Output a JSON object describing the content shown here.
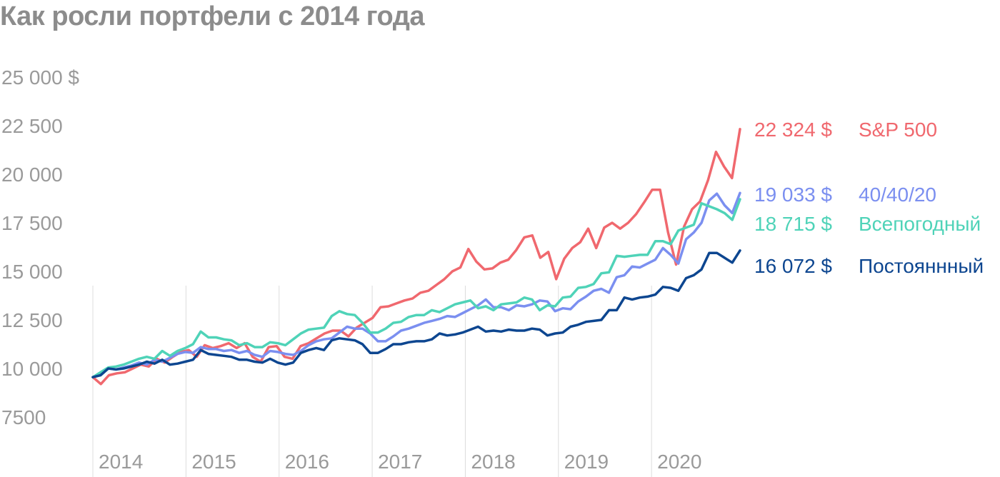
{
  "chart_data": {
    "type": "line",
    "title": "Как росли портфели с 2014 года",
    "xlabel": "",
    "ylabel": "",
    "ylim": [
      7500,
      25000
    ],
    "y_ticks": [
      {
        "value": 7500,
        "label": "7500"
      },
      {
        "value": 10000,
        "label": "10 000"
      },
      {
        "value": 12500,
        "label": "12 500"
      },
      {
        "value": 15000,
        "label": "15 000"
      },
      {
        "value": 17500,
        "label": "17 500"
      },
      {
        "value": 20000,
        "label": "20 000"
      },
      {
        "value": 22500,
        "label": "22 500"
      },
      {
        "value": 25000,
        "label": "25 000 $"
      }
    ],
    "x_ticks": [
      "2014",
      "2015",
      "2016",
      "2017",
      "2018",
      "2019",
      "2020"
    ],
    "x_start": 2014.0,
    "x_end": 2020.95,
    "grid": "vertical year lines",
    "legend": "end-of-line labels",
    "series": [
      {
        "name": "S&P 500",
        "color": "#f0686e",
        "end_label": "22 324 $",
        "values": [
          9550,
          9200,
          9650,
          9750,
          9800,
          10000,
          10200,
          10100,
          10500,
          10300,
          10600,
          10850,
          10950,
          10600,
          11200,
          11050,
          11150,
          11300,
          11050,
          11300,
          10600,
          10350,
          11100,
          11150,
          10600,
          10500,
          11150,
          11300,
          11550,
          11800,
          11950,
          11950,
          11650,
          12100,
          12350,
          12600,
          13150,
          13200,
          13350,
          13500,
          13600,
          13900,
          14000,
          14300,
          14600,
          15000,
          15200,
          16150,
          15500,
          15100,
          15150,
          15450,
          15600,
          16100,
          16750,
          16850,
          15700,
          16000,
          14600,
          15650,
          16200,
          16500,
          17200,
          16200,
          17250,
          17500,
          17200,
          17500,
          17950,
          18550,
          19200,
          19200,
          17000,
          15350,
          17300,
          18200,
          18600,
          19700,
          21150,
          20400,
          19800,
          22324
        ]
      },
      {
        "name": "40/40/20",
        "color": "#7b8ff0",
        "end_label": "19 033 $",
        "values": [
          9550,
          9700,
          10000,
          9950,
          10050,
          10150,
          10300,
          10200,
          10450,
          10350,
          10550,
          10750,
          10850,
          10800,
          11100,
          11000,
          11000,
          10900,
          10950,
          10800,
          10900,
          10700,
          10600,
          10900,
          10850,
          10750,
          10700,
          10900,
          11200,
          11400,
          11500,
          11550,
          11850,
          12150,
          12050,
          12050,
          11800,
          11400,
          11400,
          11650,
          11950,
          12050,
          12200,
          12350,
          12450,
          12550,
          12700,
          12650,
          12850,
          13050,
          13250,
          13550,
          13150,
          13150,
          13000,
          13250,
          13200,
          13300,
          13500,
          13450,
          12950,
          13100,
          13050,
          13450,
          13700,
          14000,
          14100,
          13900,
          14700,
          14800,
          15250,
          15200,
          15400,
          15600,
          16200,
          15850,
          15400,
          16650,
          17000,
          17500,
          18650,
          19000,
          18400,
          18000,
          19033
        ]
      },
      {
        "name": "Всепогодный",
        "color": "#4fd3b8",
        "end_label": "18 715 $",
        "values": [
          9550,
          9800,
          10050,
          10100,
          10200,
          10350,
          10500,
          10600,
          10500,
          10900,
          10650,
          10900,
          11050,
          11250,
          11900,
          11600,
          11600,
          11500,
          11450,
          11200,
          11300,
          11100,
          11100,
          11350,
          11300,
          11200,
          11500,
          11800,
          12000,
          12050,
          12100,
          12700,
          12950,
          12800,
          12750,
          12350,
          11850,
          11850,
          12050,
          12350,
          12400,
          12650,
          12750,
          12750,
          13000,
          12900,
          13100,
          13300,
          13400,
          13500,
          13100,
          13200,
          13000,
          13300,
          13350,
          13400,
          13650,
          13550,
          13000,
          13250,
          13200,
          13650,
          13700,
          14150,
          14200,
          14350,
          14900,
          14950,
          15800,
          15750,
          15800,
          15850,
          15850,
          16550,
          16550,
          16400,
          17100,
          17250,
          17400,
          18500,
          18350,
          18200,
          18000,
          17650,
          18715
        ]
      },
      {
        "name": "Постояннный",
        "color": "#0d4690",
        "end_label": "16 072 $",
        "values": [
          9550,
          9650,
          10000,
          9950,
          10000,
          10100,
          10200,
          10350,
          10250,
          10450,
          10200,
          10250,
          10350,
          10450,
          10950,
          10750,
          10700,
          10650,
          10600,
          10450,
          10450,
          10350,
          10300,
          10500,
          10300,
          10200,
          10300,
          10800,
          10950,
          11050,
          10950,
          11450,
          11550,
          11500,
          11450,
          11250,
          10800,
          10800,
          11000,
          11250,
          11250,
          11350,
          11400,
          11400,
          11500,
          11800,
          11700,
          11750,
          11850,
          12000,
          12150,
          11900,
          11950,
          11900,
          12000,
          11950,
          11950,
          12050,
          12000,
          11700,
          11800,
          11850,
          12150,
          12250,
          12400,
          12450,
          12500,
          13000,
          13000,
          13650,
          13550,
          13650,
          13700,
          13800,
          14200,
          14150,
          14000,
          14650,
          14800,
          15100,
          15950,
          15950,
          15700,
          15450,
          16072
        ]
      }
    ]
  }
}
